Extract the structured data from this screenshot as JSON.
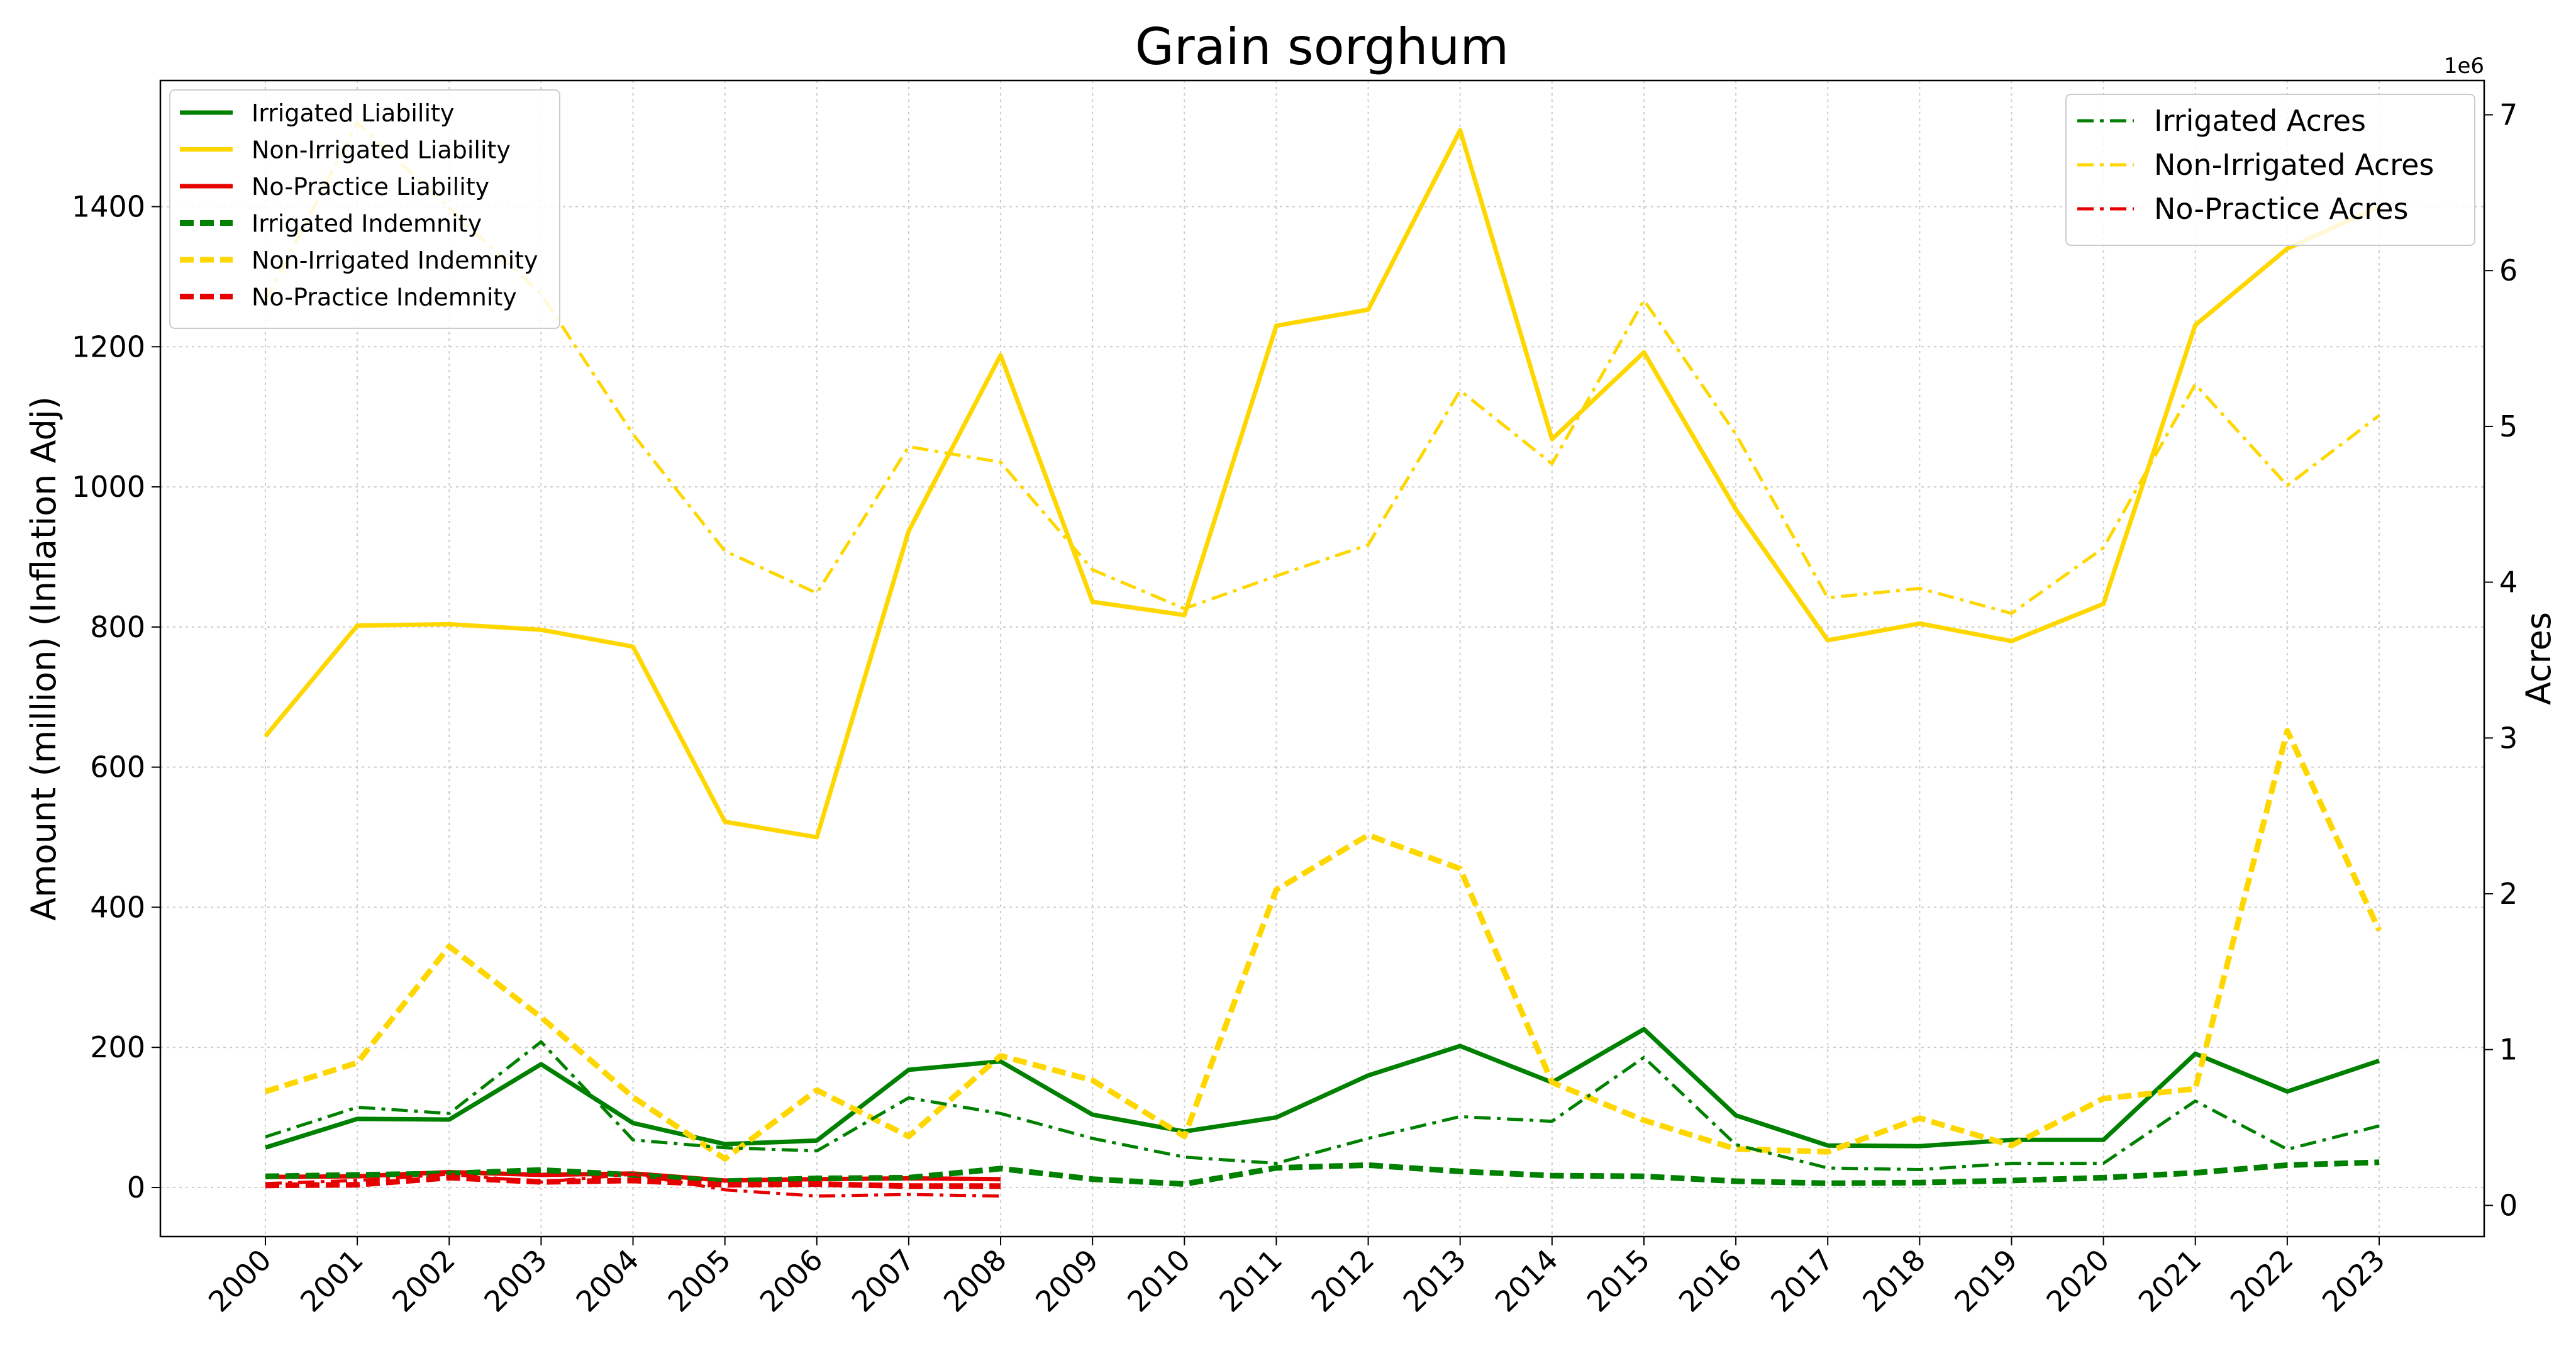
{
  "chart_data": {
    "type": "line",
    "title": "Grain sorghum",
    "ylabel": "Amount (million) (Inflation Adj)",
    "y2label": "Acres",
    "y2_offset_label": "1e6",
    "ylim": [
      -70,
      1580
    ],
    "y2lim": [
      -0.2,
      7.22
    ],
    "yticks": [
      0,
      200,
      400,
      600,
      800,
      1000,
      1200,
      1400
    ],
    "y2ticks": [
      0,
      1,
      2,
      3,
      4,
      5,
      6,
      7
    ],
    "grid": true,
    "categories": [
      "2000",
      "2001",
      "2002",
      "2003",
      "2004",
      "2005",
      "2006",
      "2007",
      "2008",
      "2009",
      "2010",
      "2011",
      "2012",
      "2013",
      "2014",
      "2015",
      "2016",
      "2017",
      "2018",
      "2019",
      "2020",
      "2021",
      "2022",
      "2023"
    ],
    "legend_left": {
      "placement": "upper-left"
    },
    "legend_right": {
      "placement": "upper-right"
    },
    "series": [
      {
        "name": "Irrigated Liability",
        "color": "#008000",
        "style": "solid",
        "axis": "left",
        "values": [
          57,
          98,
          97,
          176,
          92,
          62,
          67,
          168,
          180,
          104,
          80,
          100,
          160,
          202,
          150,
          226,
          103,
          60,
          59,
          68,
          68,
          191,
          137,
          181
        ]
      },
      {
        "name": "Non-Irrigated Liability",
        "color": "#FFD700",
        "style": "solid",
        "axis": "left",
        "values": [
          644,
          802,
          804,
          796,
          772,
          522,
          500,
          937,
          1188,
          836,
          817,
          1230,
          1253,
          1509,
          1068,
          1192,
          968,
          781,
          805,
          780,
          833,
          1231,
          1340,
          1400
        ]
      },
      {
        "name": "No-Practice Liability",
        "color": "#e60000",
        "style": "solid",
        "axis": "left",
        "values": [
          15,
          16,
          22,
          18,
          20,
          10,
          12,
          13,
          12,
          null,
          null,
          null,
          null,
          null,
          null,
          null,
          null,
          null,
          null,
          null,
          null,
          null,
          null,
          null
        ]
      },
      {
        "name": "Irrigated Indemnity",
        "color": "#008000",
        "style": "dashed",
        "axis": "left",
        "values": [
          16,
          18,
          20,
          25,
          18,
          9,
          13,
          14,
          27,
          12,
          5,
          28,
          32,
          23,
          17,
          16,
          9,
          6,
          7,
          10,
          14,
          21,
          32,
          36
        ]
      },
      {
        "name": "Non-Irrigated Indemnity",
        "color": "#FFD700",
        "style": "dashed",
        "axis": "left",
        "values": [
          137,
          178,
          344,
          243,
          129,
          41,
          139,
          73,
          188,
          153,
          73,
          425,
          503,
          455,
          150,
          96,
          55,
          51,
          99,
          60,
          127,
          141,
          652,
          367
        ]
      },
      {
        "name": "No-Practice Indemnity",
        "color": "#e60000",
        "style": "dashed",
        "axis": "left",
        "values": [
          3,
          4,
          14,
          8,
          10,
          4,
          5,
          2,
          2,
          null,
          null,
          null,
          null,
          null,
          null,
          null,
          null,
          null,
          null,
          null,
          null,
          null,
          null,
          null
        ]
      },
      {
        "name": "Irrigated Acres",
        "color": "#008000",
        "style": "dashdot",
        "axis": "right",
        "values": [
          0.44,
          0.63,
          0.59,
          1.05,
          0.42,
          0.37,
          0.35,
          0.69,
          0.59,
          0.43,
          0.31,
          0.27,
          0.43,
          0.57,
          0.54,
          0.95,
          0.39,
          0.24,
          0.23,
          0.27,
          0.27,
          0.67,
          0.36,
          0.51
        ]
      },
      {
        "name": "Non-Irrigated Acres",
        "color": "#FFD700",
        "style": "dashdot",
        "axis": "right",
        "values": [
          5.8,
          6.95,
          6.4,
          5.85,
          4.95,
          4.2,
          3.93,
          4.87,
          4.77,
          4.08,
          3.83,
          4.04,
          4.24,
          5.23,
          4.76,
          5.81,
          4.95,
          3.9,
          3.96,
          3.8,
          4.22,
          5.27,
          4.62,
          5.07
        ]
      },
      {
        "name": "No-Practice Acres",
        "color": "#e60000",
        "style": "dashdot",
        "axis": "right",
        "values": [
          0.14,
          0.16,
          0.2,
          0.15,
          0.2,
          0.1,
          0.06,
          0.07,
          0.06,
          null,
          null,
          null,
          null,
          null,
          null,
          null,
          null,
          null,
          null,
          null,
          null,
          null,
          null,
          null
        ]
      }
    ]
  }
}
